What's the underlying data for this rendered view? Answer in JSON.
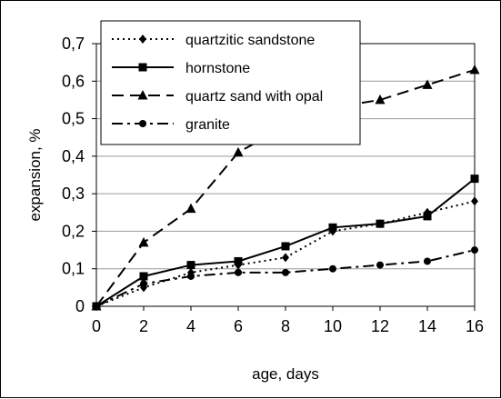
{
  "chart_data": {
    "type": "line",
    "title": "",
    "xlabel": "age, days",
    "ylabel": "expansion, %",
    "xlim": [
      0,
      16
    ],
    "ylim": [
      0,
      0.7
    ],
    "x": [
      0,
      2,
      4,
      6,
      8,
      10,
      12,
      14,
      16
    ],
    "x_ticks": [
      "0",
      "2",
      "4",
      "6",
      "8",
      "10",
      "12",
      "14",
      "16"
    ],
    "y_ticks": [
      "0",
      "0,1",
      "0,2",
      "0,3",
      "0,4",
      "0,5",
      "0,6",
      "0,7"
    ],
    "grid": "horizontal",
    "legend_position": "top-left",
    "series": [
      {
        "name": "quartzitic sandstone",
        "values": [
          0,
          0.05,
          0.09,
          0.11,
          0.13,
          0.2,
          0.22,
          0.25,
          0.28
        ],
        "line_style": "dotted",
        "marker": "diamond",
        "color": "#000000"
      },
      {
        "name": "hornstone",
        "values": [
          0,
          0.08,
          0.11,
          0.12,
          0.16,
          0.21,
          0.22,
          0.24,
          0.34
        ],
        "line_style": "solid",
        "marker": "square",
        "color": "#000000"
      },
      {
        "name": "quartz sand with opal",
        "values": [
          0,
          0.17,
          0.26,
          0.41,
          0.48,
          0.53,
          0.55,
          0.59,
          0.63
        ],
        "line_style": "dashed",
        "marker": "triangle",
        "color": "#000000"
      },
      {
        "name": "granite",
        "values": [
          0,
          0.06,
          0.08,
          0.09,
          0.09,
          0.1,
          0.11,
          0.12,
          0.15
        ],
        "line_style": "dash-dot",
        "marker": "circle",
        "color": "#000000"
      }
    ]
  }
}
